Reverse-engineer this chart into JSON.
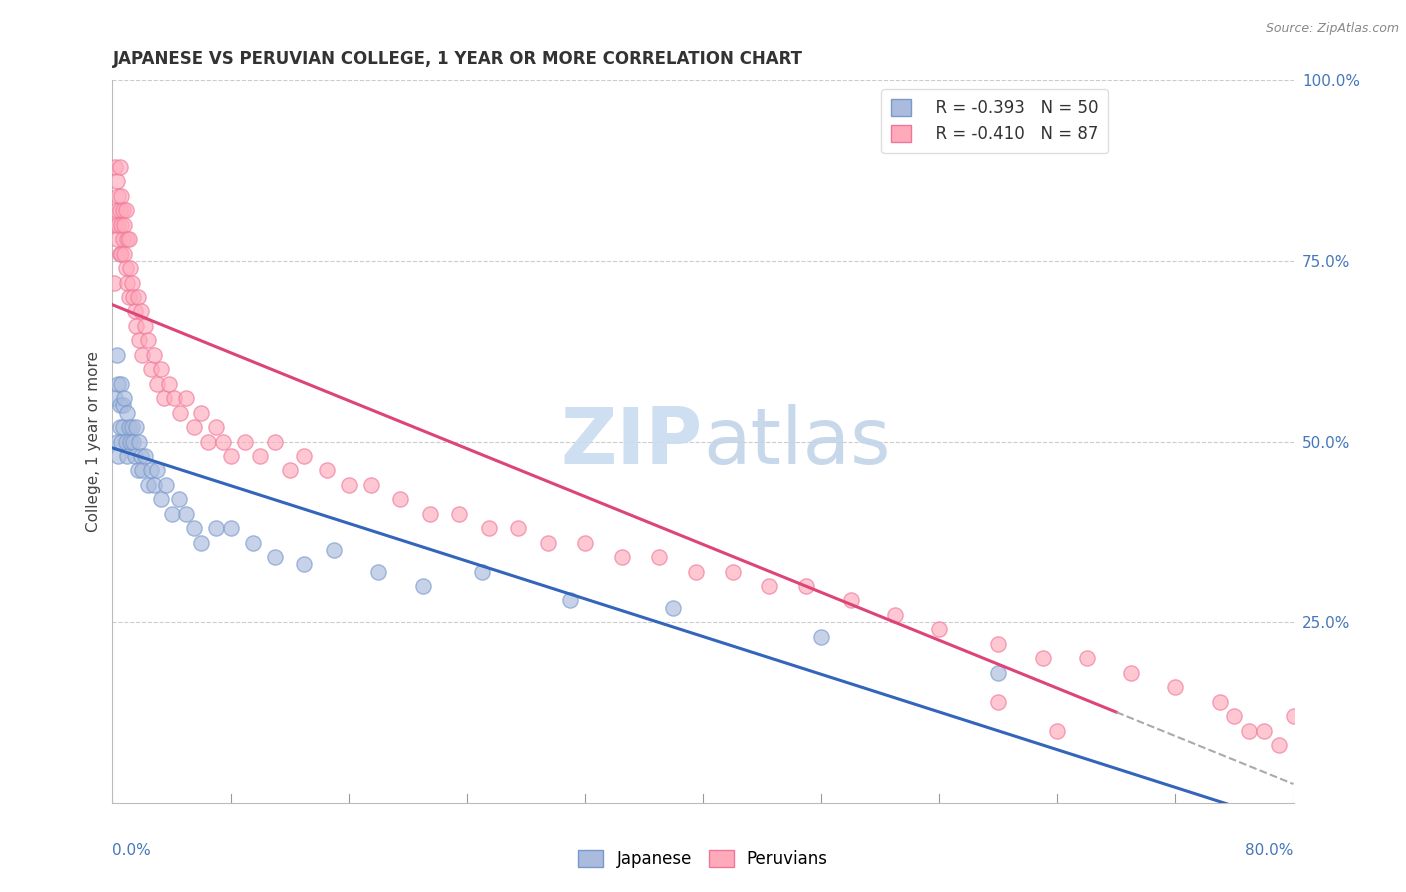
{
  "title": "JAPANESE VS PERUVIAN COLLEGE, 1 YEAR OR MORE CORRELATION CHART",
  "source_text": "Source: ZipAtlas.com",
  "ylabel": "College, 1 year or more",
  "xlim": [
    0.0,
    0.8
  ],
  "ylim": [
    0.0,
    1.0
  ],
  "ytick_vals": [
    0.0,
    0.25,
    0.5,
    0.75,
    1.0
  ],
  "ytick_labels": [
    "",
    "25.0%",
    "50.0%",
    "75.0%",
    "100.0%"
  ],
  "legend_R_japanese": "R = -0.393",
  "legend_N_japanese": "N = 50",
  "legend_R_peruvian": "R = -0.410",
  "legend_N_peruvian": "N = 87",
  "japanese_face_color": "#AABBDD",
  "japanese_edge_color": "#7799CC",
  "peruvian_face_color": "#FFAABB",
  "peruvian_edge_color": "#EE7799",
  "japanese_line_color": "#3366BB",
  "peruvian_line_color": "#DD4477",
  "dashed_line_color": "#AAAAAA",
  "background_color": "#FFFFFF",
  "watermark_zip_color": "#CCDDF0",
  "watermark_atlas_color": "#C8D8E8",
  "japanese_x": [
    0.002,
    0.003,
    0.003,
    0.004,
    0.004,
    0.005,
    0.005,
    0.006,
    0.006,
    0.007,
    0.007,
    0.008,
    0.009,
    0.01,
    0.01,
    0.011,
    0.012,
    0.013,
    0.014,
    0.015,
    0.016,
    0.017,
    0.018,
    0.019,
    0.02,
    0.022,
    0.024,
    0.026,
    0.028,
    0.03,
    0.033,
    0.036,
    0.04,
    0.045,
    0.05,
    0.055,
    0.06,
    0.07,
    0.08,
    0.095,
    0.11,
    0.13,
    0.15,
    0.18,
    0.21,
    0.25,
    0.31,
    0.38,
    0.48,
    0.6
  ],
  "japanese_y": [
    0.56,
    0.62,
    0.5,
    0.58,
    0.48,
    0.55,
    0.52,
    0.58,
    0.5,
    0.55,
    0.52,
    0.56,
    0.5,
    0.54,
    0.48,
    0.52,
    0.5,
    0.52,
    0.5,
    0.48,
    0.52,
    0.46,
    0.5,
    0.48,
    0.46,
    0.48,
    0.44,
    0.46,
    0.44,
    0.46,
    0.42,
    0.44,
    0.4,
    0.42,
    0.4,
    0.38,
    0.36,
    0.38,
    0.38,
    0.36,
    0.34,
    0.33,
    0.35,
    0.32,
    0.3,
    0.32,
    0.28,
    0.27,
    0.23,
    0.18
  ],
  "peruvian_x": [
    0.001,
    0.002,
    0.002,
    0.003,
    0.003,
    0.003,
    0.004,
    0.004,
    0.005,
    0.005,
    0.005,
    0.006,
    0.006,
    0.006,
    0.007,
    0.007,
    0.008,
    0.008,
    0.009,
    0.009,
    0.01,
    0.01,
    0.011,
    0.011,
    0.012,
    0.013,
    0.014,
    0.015,
    0.016,
    0.017,
    0.018,
    0.019,
    0.02,
    0.022,
    0.024,
    0.026,
    0.028,
    0.03,
    0.033,
    0.035,
    0.038,
    0.042,
    0.046,
    0.05,
    0.055,
    0.06,
    0.065,
    0.07,
    0.075,
    0.08,
    0.09,
    0.1,
    0.11,
    0.12,
    0.13,
    0.145,
    0.16,
    0.175,
    0.195,
    0.215,
    0.235,
    0.255,
    0.275,
    0.295,
    0.32,
    0.345,
    0.37,
    0.395,
    0.42,
    0.445,
    0.47,
    0.5,
    0.53,
    0.56,
    0.6,
    0.63,
    0.66,
    0.69,
    0.72,
    0.75,
    0.76,
    0.77,
    0.78,
    0.79,
    0.8,
    0.6,
    0.64
  ],
  "peruvian_y": [
    0.72,
    0.88,
    0.8,
    0.82,
    0.86,
    0.78,
    0.84,
    0.8,
    0.82,
    0.76,
    0.88,
    0.8,
    0.84,
    0.76,
    0.82,
    0.78,
    0.8,
    0.76,
    0.82,
    0.74,
    0.78,
    0.72,
    0.78,
    0.7,
    0.74,
    0.72,
    0.7,
    0.68,
    0.66,
    0.7,
    0.64,
    0.68,
    0.62,
    0.66,
    0.64,
    0.6,
    0.62,
    0.58,
    0.6,
    0.56,
    0.58,
    0.56,
    0.54,
    0.56,
    0.52,
    0.54,
    0.5,
    0.52,
    0.5,
    0.48,
    0.5,
    0.48,
    0.5,
    0.46,
    0.48,
    0.46,
    0.44,
    0.44,
    0.42,
    0.4,
    0.4,
    0.38,
    0.38,
    0.36,
    0.36,
    0.34,
    0.34,
    0.32,
    0.32,
    0.3,
    0.3,
    0.28,
    0.26,
    0.24,
    0.22,
    0.2,
    0.2,
    0.18,
    0.16,
    0.14,
    0.12,
    0.1,
    0.1,
    0.08,
    0.12,
    0.14,
    0.1
  ]
}
